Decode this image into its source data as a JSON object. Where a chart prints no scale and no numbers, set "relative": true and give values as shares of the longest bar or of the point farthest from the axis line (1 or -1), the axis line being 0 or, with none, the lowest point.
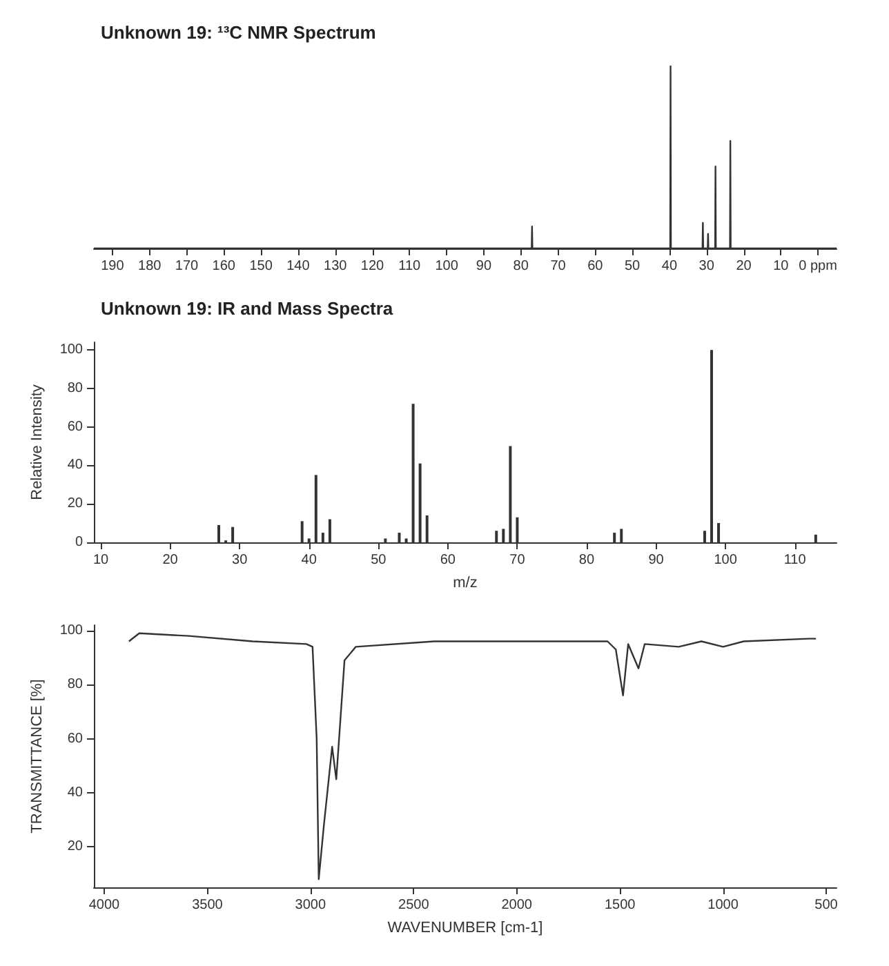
{
  "chart_data": [
    {
      "type": "line",
      "title": "Unknown 19: ¹³C NMR Spectrum",
      "relative": true,
      "grid": false,
      "xlim": [
        195,
        -5
      ],
      "xticks": [
        190,
        180,
        170,
        160,
        150,
        140,
        130,
        120,
        110,
        100,
        90,
        80,
        70,
        60,
        50,
        40,
        30,
        20,
        10,
        {
          "value": 0,
          "label": "0 ppm"
        }
      ],
      "series": [
        {
          "color": "#333333",
          "x": [
            195,
            77.1,
            77.0,
            76.9,
            39.8,
            39.7,
            39.6,
            31.1,
            31.0,
            30.9,
            29.7,
            29.6,
            29.5,
            27.7,
            27.6,
            27.5,
            23.7,
            23.6,
            23.5,
            -5
          ],
          "values": [
            0,
            0,
            0.12,
            0,
            0,
            1,
            0,
            0,
            0.14,
            0,
            0,
            0.08,
            0,
            0,
            0.45,
            0,
            0,
            0.59,
            0,
            0
          ]
        }
      ]
    },
    {
      "type": "bar",
      "title": "Unknown 19: IR and Mass Spectra",
      "xlabel": "m/z",
      "ylabel": "Relative Intensity",
      "grid": false,
      "color": "#333333",
      "xlim": [
        9,
        116
      ],
      "xticks": [
        10,
        20,
        30,
        40,
        50,
        60,
        70,
        80,
        90,
        100,
        110
      ],
      "ylim": [
        0,
        104
      ],
      "yticks": [
        0,
        20,
        40,
        60,
        80,
        100
      ],
      "x": [
        27,
        28,
        29,
        39,
        40,
        41,
        42,
        43,
        51,
        53,
        54,
        55,
        56,
        57,
        67,
        68,
        69,
        70,
        84,
        85,
        97,
        98,
        99,
        113
      ],
      "values": [
        9,
        1,
        8,
        11,
        2,
        35,
        5,
        12,
        2,
        5,
        2,
        72,
        41,
        14,
        6,
        7,
        50,
        13,
        5,
        7,
        6,
        100,
        10,
        4
      ]
    },
    {
      "type": "line",
      "xlabel": "WAVENUMBER [cm-1]",
      "ylabel": "TRANSMITTANCE [%]",
      "grid": false,
      "xlim": [
        4050,
        450
      ],
      "xticks": [
        4000,
        3500,
        3000,
        2500,
        2000,
        1500,
        1000,
        500
      ],
      "ylim": [
        5,
        102
      ],
      "yticks": [
        20,
        40,
        60,
        80,
        100
      ],
      "series": [
        {
          "color": "#333333",
          "x": [
            3880,
            3830,
            3590,
            3280,
            3020,
            2990,
            2970,
            2960,
            2935,
            2895,
            2875,
            2835,
            2780,
            2400,
            1560,
            1520,
            1485,
            1460,
            1410,
            1380,
            1215,
            1105,
            1000,
            900,
            585,
            550
          ],
          "values": [
            96,
            99,
            98,
            96,
            95,
            94,
            60,
            8,
            28,
            57,
            45,
            89,
            94,
            96,
            96,
            93,
            76,
            95,
            86,
            95,
            94,
            96,
            94,
            96,
            97,
            97
          ]
        }
      ]
    }
  ]
}
